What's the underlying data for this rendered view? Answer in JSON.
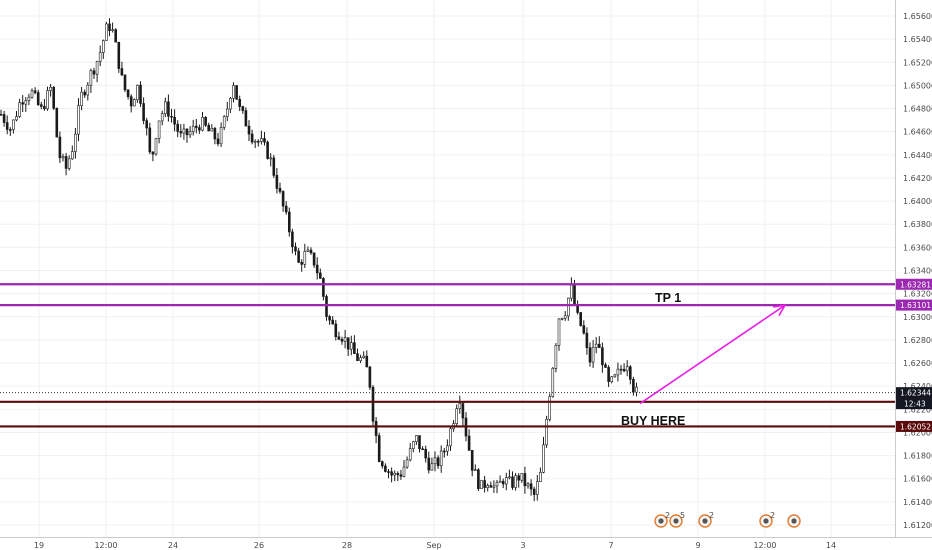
{
  "chart_data": {
    "type": "candlestick",
    "y_axis": {
      "range": [
        1.6111,
        1.6568
      ],
      "ticks": [
        "1.65600",
        "1.65400",
        "1.65200",
        "1.65000",
        "1.64800",
        "1.64600",
        "1.64400",
        "1.64200",
        "1.64000",
        "1.63800",
        "1.63600",
        "1.63400",
        "1.63200",
        "1.63000",
        "1.62800",
        "1.62600",
        "1.62400",
        "1.62200",
        "1.62000",
        "1.61800",
        "1.61600",
        "1.61400",
        "1.61200"
      ],
      "position": "right"
    },
    "x_axis": {
      "labels": [
        "19",
        "12:00",
        "24",
        "26",
        "28",
        "Sep",
        "3",
        "7",
        "9",
        "12:00",
        "14"
      ]
    },
    "grid": true,
    "price_series": [
      {
        "t": 0,
        "p": 1.6475
      },
      {
        "t": 10,
        "p": 1.6462
      },
      {
        "t": 20,
        "p": 1.6488
      },
      {
        "t": 30,
        "p": 1.6495
      },
      {
        "t": 40,
        "p": 1.6478
      },
      {
        "t": 50,
        "p": 1.6498
      },
      {
        "t": 58,
        "p": 1.644
      },
      {
        "t": 65,
        "p": 1.6428
      },
      {
        "t": 72,
        "p": 1.6448
      },
      {
        "t": 80,
        "p": 1.649
      },
      {
        "t": 90,
        "p": 1.651
      },
      {
        "t": 98,
        "p": 1.6525
      },
      {
        "t": 105,
        "p": 1.6548
      },
      {
        "t": 110,
        "p": 1.6553
      },
      {
        "t": 116,
        "p": 1.6528
      },
      {
        "t": 122,
        "p": 1.65
      },
      {
        "t": 130,
        "p": 1.6485
      },
      {
        "t": 137,
        "p": 1.65
      },
      {
        "t": 145,
        "p": 1.6465
      },
      {
        "t": 150,
        "p": 1.6432
      },
      {
        "t": 157,
        "p": 1.647
      },
      {
        "t": 165,
        "p": 1.6482
      },
      {
        "t": 172,
        "p": 1.647
      },
      {
        "t": 180,
        "p": 1.6455
      },
      {
        "t": 190,
        "p": 1.646
      },
      {
        "t": 200,
        "p": 1.6468
      },
      {
        "t": 210,
        "p": 1.6458
      },
      {
        "t": 218,
        "p": 1.6452
      },
      {
        "t": 225,
        "p": 1.6475
      },
      {
        "t": 232,
        "p": 1.6505
      },
      {
        "t": 238,
        "p": 1.648
      },
      {
        "t": 245,
        "p": 1.6468
      },
      {
        "t": 252,
        "p": 1.6455
      },
      {
        "t": 260,
        "p": 1.645
      },
      {
        "t": 268,
        "p": 1.644
      },
      {
        "t": 275,
        "p": 1.6418
      },
      {
        "t": 282,
        "p": 1.6395
      },
      {
        "t": 290,
        "p": 1.637
      },
      {
        "t": 297,
        "p": 1.6345
      },
      {
        "t": 305,
        "p": 1.6355
      },
      {
        "t": 313,
        "p": 1.6348
      },
      {
        "t": 320,
        "p": 1.633
      },
      {
        "t": 326,
        "p": 1.63
      },
      {
        "t": 333,
        "p": 1.629
      },
      {
        "t": 340,
        "p": 1.6285
      },
      {
        "t": 348,
        "p": 1.6275
      },
      {
        "t": 355,
        "p": 1.6265
      },
      {
        "t": 362,
        "p": 1.6262
      },
      {
        "t": 368,
        "p": 1.625
      },
      {
        "t": 372,
        "p": 1.6215
      },
      {
        "t": 378,
        "p": 1.618
      },
      {
        "t": 385,
        "p": 1.617
      },
      {
        "t": 392,
        "p": 1.6162
      },
      {
        "t": 400,
        "p": 1.6165
      },
      {
        "t": 407,
        "p": 1.6178
      },
      {
        "t": 415,
        "p": 1.6195
      },
      {
        "t": 422,
        "p": 1.6182
      },
      {
        "t": 430,
        "p": 1.617
      },
      {
        "t": 438,
        "p": 1.6175
      },
      {
        "t": 445,
        "p": 1.6188
      },
      {
        "t": 452,
        "p": 1.621
      },
      {
        "t": 458,
        "p": 1.6235
      },
      {
        "t": 465,
        "p": 1.62
      },
      {
        "t": 472,
        "p": 1.6168
      },
      {
        "t": 480,
        "p": 1.6152
      },
      {
        "t": 488,
        "p": 1.616
      },
      {
        "t": 495,
        "p": 1.615
      },
      {
        "t": 502,
        "p": 1.616
      },
      {
        "t": 510,
        "p": 1.6155
      },
      {
        "t": 518,
        "p": 1.6162
      },
      {
        "t": 525,
        "p": 1.6155
      },
      {
        "t": 533,
        "p": 1.6145
      },
      {
        "t": 540,
        "p": 1.6165
      },
      {
        "t": 546,
        "p": 1.6215
      },
      {
        "t": 552,
        "p": 1.626
      },
      {
        "t": 558,
        "p": 1.63
      },
      {
        "t": 564,
        "p": 1.6305
      },
      {
        "t": 570,
        "p": 1.6325
      },
      {
        "t": 576,
        "p": 1.63
      },
      {
        "t": 582,
        "p": 1.6288
      },
      {
        "t": 588,
        "p": 1.626
      },
      {
        "t": 595,
        "p": 1.6278
      },
      {
        "t": 601,
        "p": 1.6265
      },
      {
        "t": 607,
        "p": 1.624
      },
      {
        "t": 613,
        "p": 1.6245
      },
      {
        "t": 620,
        "p": 1.6255
      },
      {
        "t": 627,
        "p": 1.6262
      },
      {
        "t": 632,
        "p": 1.624
      },
      {
        "t": 637,
        "p": 1.6232
      }
    ],
    "levels": [
      {
        "price": 1.63281,
        "color": "#9c27b0",
        "label": "1.63281"
      },
      {
        "price": 1.63101,
        "color": "#9c27b0",
        "label": "1.63101"
      },
      {
        "price": 1.62265,
        "color": "#5a0a0a",
        "label": "1.62265"
      },
      {
        "price": 1.62052,
        "color": "#5a0a0a",
        "label": "1.62052"
      }
    ],
    "current_price": {
      "price": 1.62344,
      "label": "1.62344",
      "countdown": "12:43"
    },
    "annotations": [
      {
        "text": "TP 1"
      },
      {
        "text": "BUY HERE"
      }
    ],
    "projection_arrow": {
      "from": {
        "t": 640,
        "p": 1.6225
      },
      "to": {
        "t": 785,
        "p": 1.631
      },
      "color": "#e81ee8"
    },
    "events": [
      {
        "icon": "economic-event-icon",
        "count": "2"
      },
      {
        "icon": "economic-event-icon",
        "count": "5"
      },
      {
        "icon": "economic-event-icon",
        "count": "2"
      },
      {
        "icon": "economic-event-icon",
        "count": "2"
      },
      {
        "icon": "economic-event-icon",
        "count": ""
      }
    ],
    "colors": {
      "up": "#ffffff",
      "down": "#1a1a1a",
      "wick": "#1a1a1a",
      "grid": "#eef0f4",
      "level_tp": "#9c27b0",
      "level_buy": "#5a0a0a",
      "arrow": "#e81ee8"
    }
  }
}
